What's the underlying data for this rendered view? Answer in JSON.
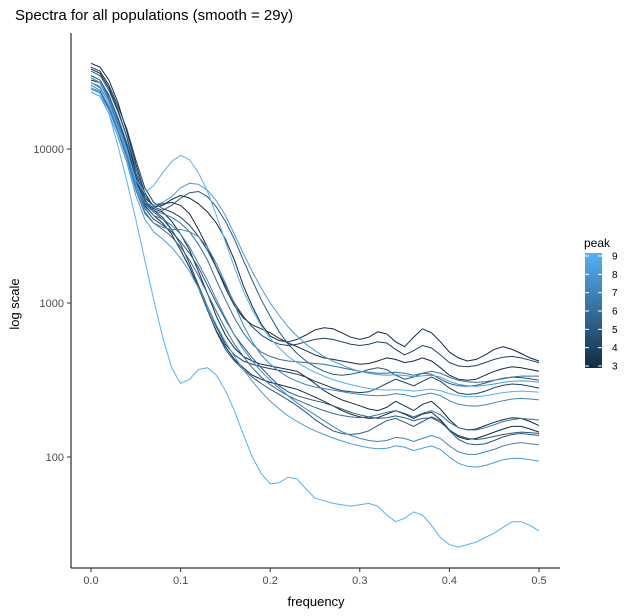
{
  "chart_data": {
    "type": "line",
    "title": "Spectra for all populations (smooth = 29y)",
    "xlabel": "frequency",
    "ylabel": "log scale",
    "xlim": [
      -0.02,
      0.52
    ],
    "ylim": [
      20,
      60000
    ],
    "y_scale": "log10",
    "grid": false,
    "x_ticks": [
      0.0,
      0.1,
      0.2,
      0.3,
      0.4,
      0.5
    ],
    "x_tick_labels": [
      "0.0",
      "0.1",
      "0.2",
      "0.3",
      "0.4",
      "0.5"
    ],
    "y_ticks": [
      100,
      1000,
      10000
    ],
    "y_tick_labels": [
      "100",
      "1000",
      "10000"
    ],
    "legend": {
      "title": "peak",
      "placement": "right",
      "min": 3,
      "max": 9,
      "labels": [
        "9",
        "8",
        "7",
        "6",
        "5",
        "4",
        "3"
      ],
      "color_low": "#132b43",
      "color_high": "#56b1f7"
    },
    "x": [
      0.0,
      0.01,
      0.02,
      0.03,
      0.04,
      0.05,
      0.06,
      0.07,
      0.08,
      0.09,
      0.1,
      0.11,
      0.12,
      0.13,
      0.14,
      0.15,
      0.16,
      0.17,
      0.18,
      0.19,
      0.2,
      0.21,
      0.22,
      0.23,
      0.24,
      0.25,
      0.26,
      0.27,
      0.28,
      0.29,
      0.3,
      0.31,
      0.32,
      0.33,
      0.34,
      0.35,
      0.36,
      0.37,
      0.38,
      0.39,
      0.4,
      0.41,
      0.42,
      0.43,
      0.44,
      0.45,
      0.46,
      0.47,
      0.48,
      0.49,
      0.5
    ],
    "series": [
      {
        "peak": 3,
        "values": [
          36000,
          34000,
          28000,
          20000,
          13000,
          8000,
          5200,
          4200,
          4300,
          4700,
          5000,
          4800,
          4400,
          3900,
          3300,
          2600,
          1900,
          1300,
          950,
          730,
          610,
          570,
          560,
          580,
          620,
          670,
          690,
          680,
          640,
          600,
          580,
          600,
          650,
          630,
          560,
          520,
          600,
          680,
          640,
          560,
          480,
          440,
          420,
          430,
          460,
          500,
          520,
          500,
          470,
          440,
          420
        ]
      },
      {
        "peak": 3,
        "values": [
          33000,
          31000,
          25000,
          18000,
          12000,
          7000,
          4800,
          4300,
          4400,
          4500,
          4300,
          3800,
          3000,
          2300,
          1700,
          1250,
          960,
          800,
          720,
          680,
          640,
          590,
          550,
          520,
          490,
          460,
          440,
          430,
          420,
          410,
          400,
          405,
          420,
          440,
          430,
          410,
          420,
          440,
          420,
          380,
          340,
          320,
          315,
          320,
          340,
          360,
          375,
          385,
          380,
          370,
          360
        ]
      },
      {
        "peak": 3,
        "values": [
          30000,
          28000,
          22000,
          16000,
          11000,
          6600,
          4600,
          4100,
          3900,
          3400,
          2800,
          2200,
          1600,
          1150,
          820,
          620,
          510,
          450,
          420,
          400,
          390,
          380,
          370,
          360,
          330,
          300,
          270,
          250,
          235,
          225,
          215,
          205,
          200,
          210,
          230,
          215,
          200,
          220,
          230,
          205,
          175,
          155,
          150,
          152,
          160,
          168,
          175,
          180,
          178,
          170,
          160
        ]
      },
      {
        "peak": 3,
        "values": [
          28000,
          27000,
          21000,
          15000,
          10000,
          6200,
          4300,
          3700,
          3300,
          2800,
          2200,
          1700,
          1250,
          900,
          660,
          520,
          430,
          380,
          340,
          320,
          305,
          295,
          285,
          275,
          260,
          245,
          230,
          215,
          200,
          190,
          182,
          178,
          180,
          190,
          200,
          190,
          178,
          190,
          195,
          175,
          150,
          135,
          130,
          132,
          138,
          145,
          152,
          158,
          158,
          152,
          145
        ]
      },
      {
        "peak": 4,
        "values": [
          29000,
          27000,
          21000,
          15500,
          10500,
          6400,
          4500,
          4000,
          3600,
          3000,
          2400,
          1800,
          1300,
          950,
          700,
          540,
          460,
          420,
          400,
          385,
          375,
          365,
          355,
          345,
          330,
          310,
          295,
          280,
          270,
          265,
          262,
          265,
          280,
          300,
          320,
          305,
          290,
          310,
          330,
          310,
          280,
          260,
          255,
          258,
          268,
          282,
          292,
          298,
          295,
          288,
          280
        ]
      },
      {
        "peak": 4,
        "values": [
          34000,
          32000,
          26000,
          19000,
          13500,
          8500,
          5600,
          4500,
          4100,
          3900,
          3600,
          3200,
          2700,
          2200,
          1700,
          1300,
          1000,
          820,
          700,
          620,
          570,
          540,
          530,
          540,
          560,
          580,
          590,
          580,
          560,
          540,
          530,
          540,
          560,
          550,
          500,
          460,
          490,
          530,
          510,
          460,
          410,
          390,
          385,
          392,
          410,
          430,
          445,
          450,
          440,
          425,
          410
        ]
      },
      {
        "peak": 5,
        "values": [
          32000,
          30000,
          24000,
          17500,
          12000,
          7500,
          5000,
          4200,
          4000,
          4300,
          4800,
          5200,
          5300,
          4900,
          4200,
          3400,
          2600,
          1900,
          1400,
          1050,
          820,
          650,
          540,
          470,
          420,
          385,
          360,
          345,
          340,
          345,
          355,
          370,
          380,
          370,
          340,
          320,
          330,
          350,
          345,
          320,
          300,
          290,
          288,
          292,
          302,
          315,
          325,
          330,
          328,
          322,
          315
        ]
      },
      {
        "peak": 5,
        "values": [
          27000,
          25000,
          20000,
          14000,
          9500,
          5800,
          4100,
          3500,
          3200,
          2900,
          2500,
          2100,
          1700,
          1300,
          1000,
          780,
          620,
          520,
          440,
          380,
          330,
          290,
          265,
          250,
          240,
          232,
          225,
          215,
          205,
          195,
          188,
          182,
          178,
          180,
          185,
          180,
          172,
          178,
          180,
          168,
          150,
          138,
          132,
          130,
          132,
          136,
          140,
          143,
          145,
          144,
          142
        ]
      },
      {
        "peak": 5,
        "values": [
          27000,
          25500,
          20000,
          14500,
          10000,
          6100,
          4400,
          3900,
          3500,
          3000,
          2400,
          1800,
          1300,
          900,
          650,
          500,
          420,
          370,
          330,
          300,
          275,
          255,
          235,
          215,
          195,
          175,
          160,
          148,
          142,
          140,
          142,
          148,
          160,
          172,
          178,
          168,
          158,
          170,
          182,
          172,
          148,
          130,
          122,
          120,
          122,
          128,
          135,
          140,
          142,
          140,
          138
        ]
      },
      {
        "peak": 6,
        "values": [
          25000,
          23500,
          18500,
          13000,
          9000,
          5500,
          3900,
          3300,
          3000,
          2700,
          2300,
          1900,
          1500,
          1150,
          880,
          680,
          540,
          450,
          380,
          330,
          295,
          270,
          250,
          235,
          222,
          210,
          200,
          192,
          186,
          182,
          180,
          182,
          188,
          195,
          200,
          192,
          182,
          192,
          200,
          188,
          168,
          155,
          150,
          150,
          155,
          162,
          170,
          175,
          178,
          176,
          174
        ]
      },
      {
        "peak": 6,
        "values": [
          30000,
          28000,
          22500,
          16000,
          11000,
          6800,
          4700,
          4000,
          3800,
          3600,
          3300,
          2900,
          2400,
          1900,
          1400,
          1050,
          800,
          640,
          540,
          480,
          450,
          430,
          420,
          415,
          410,
          405,
          400,
          390,
          380,
          370,
          360,
          355,
          350,
          350,
          355,
          350,
          340,
          350,
          360,
          350,
          330,
          315,
          308,
          305,
          308,
          315,
          322,
          330,
          335,
          335,
          335
        ]
      },
      {
        "peak": 7,
        "values": [
          26000,
          24000,
          19000,
          13500,
          9200,
          5800,
          4200,
          3700,
          3500,
          3200,
          2800,
          2300,
          1800,
          1400,
          1050,
          800,
          620,
          500,
          420,
          360,
          315,
          280,
          250,
          225,
          205,
          188,
          172,
          158,
          146,
          138,
          132,
          128,
          126,
          128,
          134,
          132,
          126,
          132,
          138,
          132,
          118,
          108,
          104,
          104,
          108,
          112,
          118,
          122,
          124,
          122,
          120
        ]
      },
      {
        "peak": 7,
        "values": [
          24500,
          23000,
          18000,
          12800,
          8700,
          5400,
          3800,
          3300,
          3100,
          3000,
          3000,
          2900,
          2700,
          2300,
          1800,
          1350,
          980,
          720,
          560,
          460,
          400,
          360,
          330,
          310,
          295,
          285,
          278,
          272,
          266,
          260,
          255,
          252,
          250,
          252,
          258,
          254,
          246,
          254,
          260,
          250,
          232,
          220,
          215,
          214,
          218,
          225,
          232,
          238,
          240,
          238,
          235
        ]
      },
      {
        "peak": 8,
        "values": [
          23500,
          22000,
          17000,
          12000,
          8200,
          5000,
          3500,
          2900,
          2600,
          2300,
          1950,
          1600,
          1250,
          950,
          720,
          560,
          450,
          370,
          310,
          265,
          230,
          205,
          185,
          170,
          158,
          148,
          140,
          133,
          127,
          122,
          118,
          115,
          113,
          114,
          118,
          116,
          110,
          114,
          118,
          112,
          100,
          91,
          87,
          86,
          88,
          92,
          96,
          98,
          98,
          96,
          94
        ]
      },
      {
        "peak": 8,
        "values": [
          29000,
          27000,
          21500,
          15000,
          10000,
          6000,
          4500,
          4300,
          4500,
          4900,
          5600,
          6000,
          5900,
          5400,
          4600,
          3700,
          2800,
          2100,
          1600,
          1250,
          1000,
          830,
          700,
          610,
          540,
          490,
          450,
          420,
          395,
          375,
          360,
          350,
          343,
          340,
          342,
          338,
          332,
          336,
          340,
          330,
          310,
          296,
          290,
          288,
          292,
          298,
          305,
          310,
          312,
          310,
          306
        ]
      },
      {
        "peak": 9,
        "values": [
          27000,
          25500,
          20000,
          14000,
          9600,
          6300,
          5200,
          5800,
          7000,
          8300,
          9100,
          8500,
          7000,
          5300,
          3700,
          2500,
          1700,
          1200,
          900,
          710,
          590,
          510,
          450,
          410,
          380,
          355,
          335,
          318,
          305,
          295,
          286,
          279,
          274,
          272,
          274,
          272,
          268,
          272,
          276,
          270,
          258,
          250,
          246,
          246,
          250,
          256,
          262,
          266,
          268,
          266,
          264
        ]
      },
      {
        "peak": 9,
        "values": [
          25000,
          23000,
          17000,
          10500,
          6200,
          3500,
          1900,
          1050,
          600,
          380,
          300,
          320,
          370,
          380,
          340,
          270,
          200,
          140,
          100,
          78,
          67,
          68,
          74,
          72,
          62,
          54,
          52,
          50,
          49,
          48,
          49,
          50,
          48,
          42,
          38,
          40,
          44,
          42,
          36,
          30,
          27,
          26,
          27,
          28,
          30,
          32,
          35,
          38,
          38,
          36,
          33
        ]
      }
    ]
  }
}
